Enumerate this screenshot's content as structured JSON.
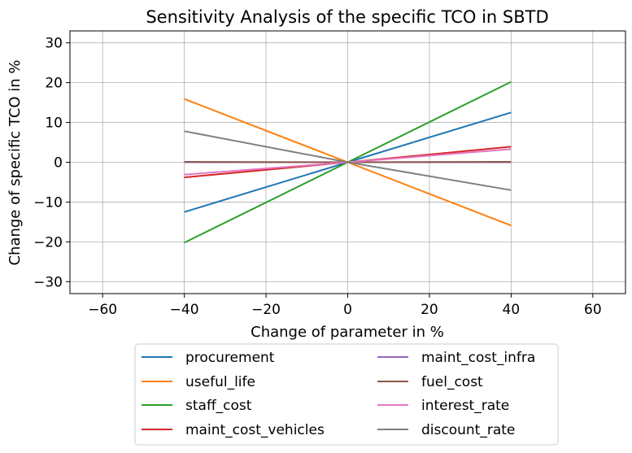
{
  "chart_data": {
    "type": "line",
    "title": "Sensitivity Analysis of the specific TCO in SBTD",
    "xlabel": "Change of parameter in %",
    "ylabel": "Change of specific TCO in %",
    "xlim": [
      -68,
      68
    ],
    "ylim": [
      -33,
      33
    ],
    "xticks": [
      -60,
      -40,
      -20,
      0,
      20,
      40,
      60
    ],
    "yticks": [
      -30,
      -20,
      -10,
      0,
      10,
      20,
      30
    ],
    "xtick_labels": [
      "−60",
      "−40",
      "−20",
      "0",
      "20",
      "40",
      "60"
    ],
    "ytick_labels": [
      "−30",
      "−20",
      "−10",
      "0",
      "10",
      "20",
      "30"
    ],
    "grid": true,
    "legend_position": "below plot, two columns",
    "x": [
      -40,
      0,
      40
    ],
    "series": [
      {
        "name": "procurement",
        "color": "#1f77b4",
        "values": [
          -12.5,
          0,
          12.5
        ]
      },
      {
        "name": "useful_life",
        "color": "#ff7f0e",
        "values": [
          15.9,
          0,
          -15.9
        ]
      },
      {
        "name": "staff_cost",
        "color": "#2ca02c",
        "values": [
          -20.2,
          0,
          20.2
        ]
      },
      {
        "name": "maint_cost_vehicles",
        "color": "#d62728",
        "values": [
          -3.8,
          0,
          3.9
        ]
      },
      {
        "name": "maint_cost_infra",
        "color": "#9467bd",
        "values": [
          0,
          0,
          0
        ]
      },
      {
        "name": "fuel_cost",
        "color": "#8c564b",
        "values": [
          0.1,
          0,
          0.1
        ]
      },
      {
        "name": "interest_rate",
        "color": "#e377c2",
        "values": [
          -3.1,
          0,
          3.3
        ]
      },
      {
        "name": "discount_rate",
        "color": "#7f7f7f",
        "values": [
          7.8,
          0,
          -7.0
        ]
      }
    ]
  }
}
